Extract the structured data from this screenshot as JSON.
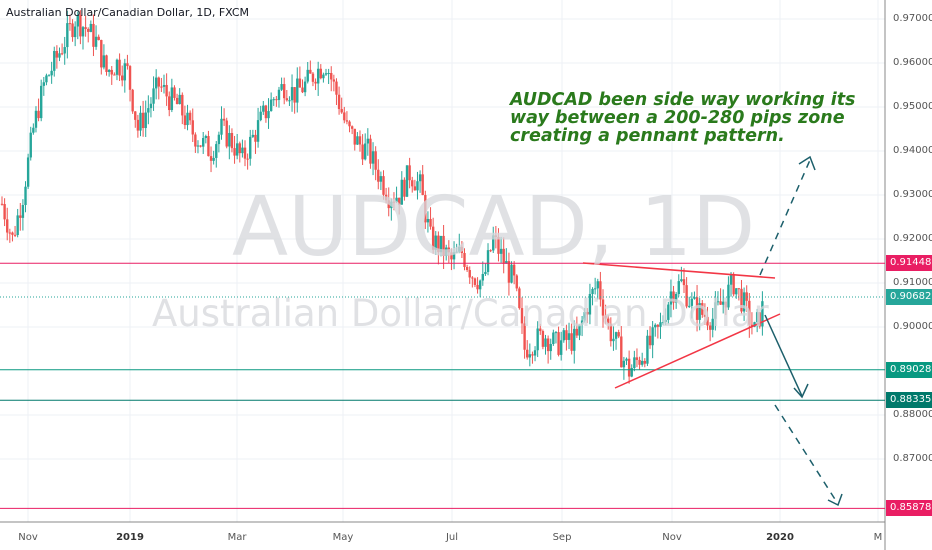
{
  "chart_data": {
    "type": "candlestick",
    "title": "Australian Dollar/Canadian Dollar, 1D, FXCM",
    "watermark": {
      "symbol": "AUDCAD, 1D",
      "name": "Australian Dollar/Canadian Dollar"
    },
    "annotation": "AUDCAD been side way working its way between a 200-280 pips zone creating a pennant pattern.",
    "ylim": [
      0.855,
      0.975
    ],
    "y_ticks": [
      "0.97000",
      "0.96000",
      "0.95000",
      "0.94000",
      "0.93000",
      "0.92000",
      "0.91000",
      "0.90000",
      "0.88000",
      "0.87000"
    ],
    "x_ticks": [
      "Nov",
      "2019",
      "Mar",
      "May",
      "Jul",
      "Sep",
      "Nov",
      "2020",
      "M"
    ],
    "approx_closes": [
      0.928,
      0.92,
      0.93,
      0.945,
      0.955,
      0.96,
      0.965,
      0.97,
      0.968,
      0.965,
      0.958,
      0.96,
      0.958,
      0.945,
      0.95,
      0.955,
      0.952,
      0.95,
      0.945,
      0.942,
      0.94,
      0.945,
      0.942,
      0.938,
      0.943,
      0.948,
      0.952,
      0.955,
      0.953,
      0.955,
      0.958,
      0.96,
      0.953,
      0.945,
      0.942,
      0.94,
      0.935,
      0.93,
      0.93,
      0.935,
      0.932,
      0.92,
      0.918,
      0.915,
      0.917,
      0.912,
      0.91,
      0.92,
      0.915,
      0.91,
      0.895,
      0.897,
      0.898,
      0.896,
      0.897,
      0.897,
      0.905,
      0.91,
      0.9,
      0.895,
      0.89,
      0.893,
      0.896,
      0.9,
      0.908,
      0.91,
      0.905,
      0.903,
      0.902,
      0.906,
      0.91,
      0.905,
      0.899,
      0.906
    ],
    "levels": [
      {
        "price": "0.91448",
        "color": "#e91e63"
      },
      {
        "price": "0.90682",
        "color": "#26a69a",
        "style": "dotted",
        "current": true
      },
      {
        "price": "0.89028",
        "color": "#089981"
      },
      {
        "price": "0.88335",
        "color": "#00796b"
      },
      {
        "price": "0.85878",
        "color": "#e91e63"
      }
    ],
    "colors": {
      "up": "#26a69a",
      "down": "#ef5350",
      "pennant": "#f23645",
      "arrow": "#1c5f6b"
    },
    "grid": true
  }
}
